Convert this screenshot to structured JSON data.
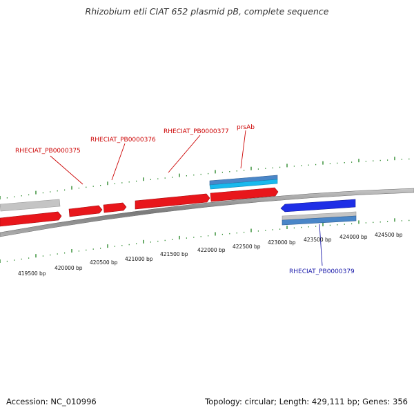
{
  "title": "Rhizobium etli CIAT 652 plasmid pB, complete sequence",
  "footer": {
    "accession_label": "Accession: NC_010996",
    "summary_label": "Topology: circular; Length: 429,111 bp; Genes: 356"
  },
  "colors": {
    "forward_gene": "#e8161b",
    "reverse_gene": "#1e2ee6",
    "pseudo_gene": "#c4c4c4",
    "rna_blue": "#4a86c8",
    "rna_cyan": "#19b9ee",
    "tick": "#2d8a2d",
    "backbone": "#8a8a8a",
    "label_red": "#cc0000",
    "label_blue": "#1a1aaa"
  },
  "scale": {
    "tick_labels": [
      "419500 bp",
      "420000 bp",
      "420500 bp",
      "421000 bp",
      "421500 bp",
      "422000 bp",
      "422500 bp",
      "423000 bp",
      "423500 bp",
      "424000 bp",
      "424500 bp"
    ]
  },
  "gene_labels": {
    "g375": "RHECIAT_PB0000375",
    "g376": "RHECIAT_PB0000376",
    "g377": "RHECIAT_PB0000377",
    "prsAb": "prsAb",
    "g379": "RHECIAT_PB0000379"
  }
}
